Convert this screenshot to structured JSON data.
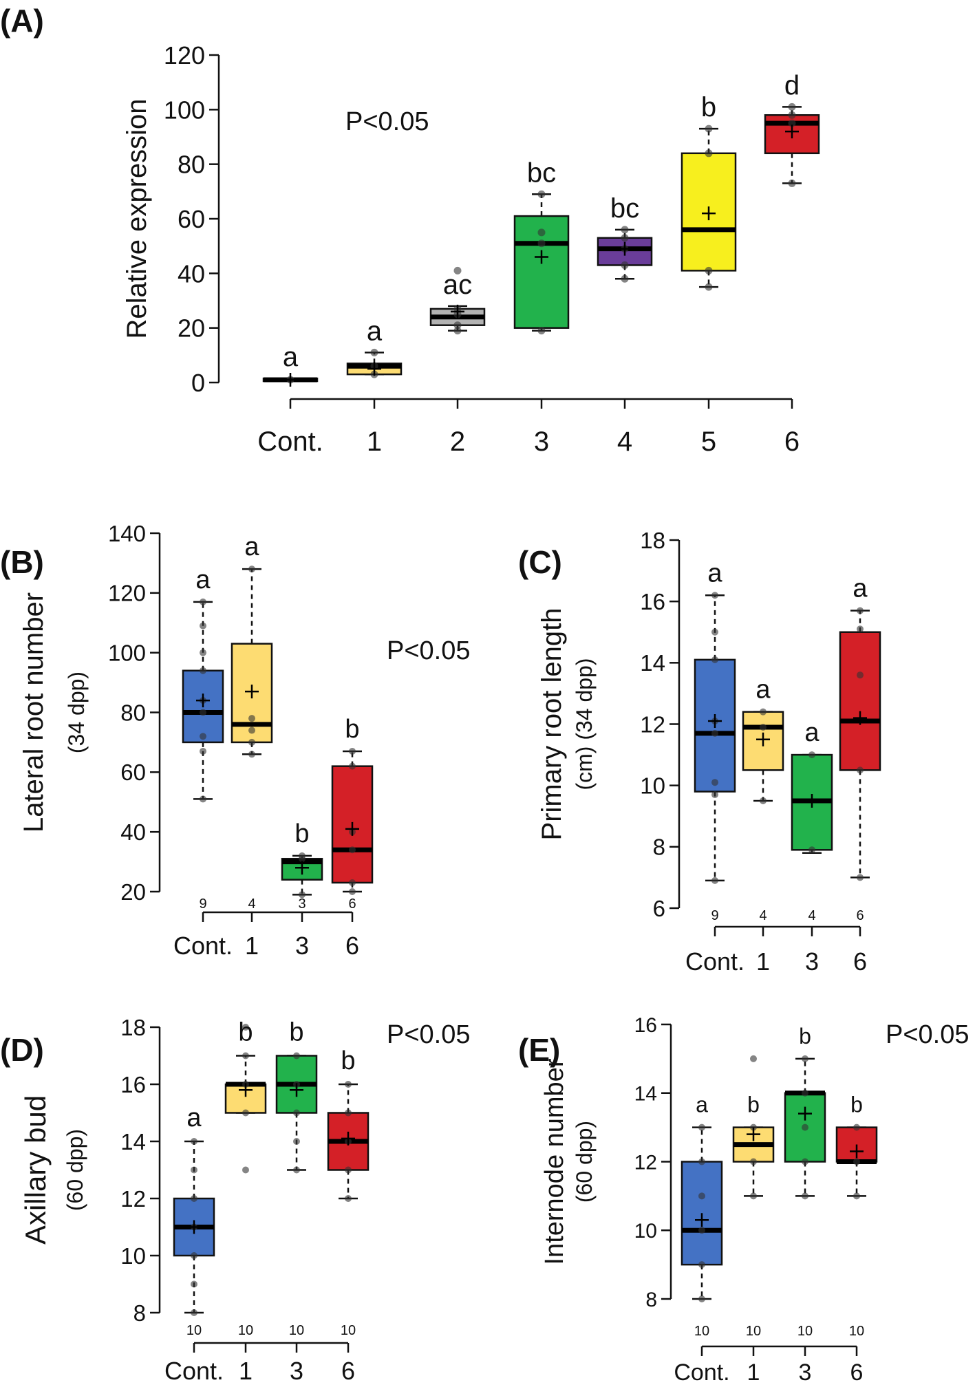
{
  "chart_data": [
    {
      "panel": "(A)",
      "type": "box",
      "ylabel": "Relative expression",
      "ylabel_sub": "",
      "ylim": [
        0,
        120
      ],
      "yticks": [
        0,
        20,
        40,
        60,
        80,
        100,
        120
      ],
      "categories": [
        "Cont.",
        "1",
        "2",
        "3",
        "4",
        "5",
        "6"
      ],
      "pvalue": "P<0.05",
      "n_labels": [],
      "boxes": [
        {
          "cat": "Cont.",
          "color": "#1a1a1a",
          "wmin": 0.5,
          "q1": 0.5,
          "median": 1,
          "q3": 1.5,
          "wmax": 1.5,
          "mean": 1,
          "points": [
            1
          ],
          "letter": "a"
        },
        {
          "cat": "1",
          "color": "#fddc72",
          "wmin": 3,
          "q1": 3,
          "median": 6,
          "q3": 7,
          "wmax": 11,
          "mean": 5,
          "points": [
            3,
            6,
            11
          ],
          "letter": "a"
        },
        {
          "cat": "2",
          "color": "#b3b3b3",
          "wmin": 19,
          "q1": 21,
          "median": 24,
          "q3": 27,
          "wmax": 28,
          "mean": 26,
          "points": [
            19,
            21,
            25,
            27,
            41
          ],
          "letter": "ac"
        },
        {
          "cat": "3",
          "color": "#22b24c",
          "wmin": 19,
          "q1": 20,
          "median": 51,
          "q3": 61,
          "wmax": 69,
          "mean": 46,
          "points": [
            19,
            51,
            55,
            69
          ],
          "letter": "bc"
        },
        {
          "cat": "4",
          "color": "#6a3d9a",
          "wmin": 38,
          "q1": 43,
          "median": 49,
          "q3": 53,
          "wmax": 56,
          "mean": 49,
          "points": [
            38,
            43,
            49,
            53,
            56
          ],
          "letter": "bc"
        },
        {
          "cat": "5",
          "color": "#f7ef1e",
          "wmin": 35,
          "q1": 41,
          "median": 56,
          "q3": 84,
          "wmax": 93,
          "mean": 62,
          "points": [
            35,
            41,
            84,
            93
          ],
          "letter": "b"
        },
        {
          "cat": "6",
          "color": "#d42027",
          "wmin": 73,
          "q1": 84,
          "median": 95,
          "q3": 98,
          "wmax": 101,
          "mean": 92,
          "points": [
            73,
            95,
            98,
            101
          ],
          "letter": "d"
        }
      ]
    },
    {
      "panel": "(B)",
      "type": "box",
      "ylabel": "Lateral root number",
      "ylabel_sub": "(34 dpp)",
      "ylim": [
        20,
        140
      ],
      "yticks": [
        20,
        40,
        60,
        80,
        100,
        120,
        140
      ],
      "categories": [
        "Cont.",
        "1",
        "3",
        "6"
      ],
      "pvalue": "P<0.05",
      "n_labels": [
        "9",
        "4",
        "3",
        "6"
      ],
      "boxes": [
        {
          "cat": "Cont.",
          "color": "#4472c4",
          "wmin": 51,
          "q1": 70,
          "median": 80,
          "q3": 94,
          "wmax": 117,
          "mean": 84,
          "points": [
            51,
            67,
            72,
            80,
            84,
            94,
            100,
            109,
            117
          ],
          "letter": "a"
        },
        {
          "cat": "1",
          "color": "#fddc72",
          "wmin": 66,
          "q1": 70,
          "median": 76,
          "q3": 103,
          "wmax": 128,
          "mean": 87,
          "points": [
            66,
            70,
            74,
            78,
            128
          ],
          "letter": "a"
        },
        {
          "cat": "3",
          "color": "#22b24c",
          "wmin": 19,
          "q1": 24,
          "median": 30,
          "q3": 31,
          "wmax": 32,
          "mean": 28,
          "points": [
            19,
            31,
            32
          ],
          "letter": "b"
        },
        {
          "cat": "6",
          "color": "#d42027",
          "wmin": 20,
          "q1": 23,
          "median": 34,
          "q3": 62,
          "wmax": 67,
          "mean": 41,
          "points": [
            20,
            23,
            34,
            40,
            62,
            67
          ],
          "letter": "b"
        }
      ]
    },
    {
      "panel": "(C)",
      "type": "box",
      "ylabel": "Primary root length",
      "ylabel_sub": "(cm) (34 dpp)",
      "ylim": [
        6,
        18
      ],
      "yticks": [
        6,
        8,
        10,
        12,
        14,
        16,
        18
      ],
      "categories": [
        "Cont.",
        "1",
        "3",
        "6"
      ],
      "pvalue": "",
      "n_labels": [
        "9",
        "4",
        "4",
        "6"
      ],
      "boxes": [
        {
          "cat": "Cont.",
          "color": "#4472c4",
          "wmin": 6.9,
          "q1": 9.8,
          "median": 11.7,
          "q3": 14.1,
          "wmax": 16.2,
          "mean": 12.1,
          "points": [
            6.9,
            9.7,
            10.1,
            11.7,
            12.1,
            14.1,
            15.0,
            16.2
          ],
          "letter": "a"
        },
        {
          "cat": "1",
          "color": "#fddc72",
          "wmin": 9.5,
          "q1": 10.5,
          "median": 11.9,
          "q3": 12.4,
          "wmax": 12.4,
          "mean": 11.5,
          "points": [
            9.5,
            11.9,
            12.4
          ],
          "letter": "a"
        },
        {
          "cat": "3",
          "color": "#22b24c",
          "wmin": 7.8,
          "q1": 7.9,
          "median": 9.5,
          "q3": 11.0,
          "wmax": 11.0,
          "mean": 9.5,
          "points": [
            7.9,
            11.0
          ],
          "letter": "a"
        },
        {
          "cat": "6",
          "color": "#d42027",
          "wmin": 7.0,
          "q1": 10.5,
          "median": 12.1,
          "q3": 15.0,
          "wmax": 15.7,
          "mean": 12.2,
          "points": [
            7.0,
            10.5,
            13.6,
            15.1,
            15.7
          ],
          "letter": "a"
        }
      ]
    },
    {
      "panel": "(D)",
      "type": "box",
      "ylabel": "Axillary bud",
      "ylabel_sub": "(60 dpp)",
      "ylim": [
        8,
        18
      ],
      "yticks": [
        8,
        10,
        12,
        14,
        16,
        18
      ],
      "categories": [
        "Cont.",
        "1",
        "3",
        "6"
      ],
      "pvalue": "P<0.05",
      "n_labels": [
        "10",
        "10",
        "10",
        "10"
      ],
      "boxes": [
        {
          "cat": "Cont.",
          "color": "#4472c4",
          "wmin": 8,
          "q1": 10,
          "median": 11,
          "q3": 12,
          "wmax": 14,
          "mean": 11,
          "points": [
            8,
            9,
            10,
            11,
            12,
            13,
            14
          ],
          "letter": "a"
        },
        {
          "cat": "1",
          "color": "#fddc72",
          "wmin": 15,
          "q1": 15,
          "median": 16,
          "q3": 16,
          "wmax": 17,
          "mean": 15.8,
          "points": [
            13,
            15,
            16,
            17,
            18
          ],
          "letter": "b"
        },
        {
          "cat": "3",
          "color": "#22b24c",
          "wmin": 13,
          "q1": 15,
          "median": 16,
          "q3": 17,
          "wmax": 17,
          "mean": 15.8,
          "points": [
            13,
            14,
            15,
            16,
            17
          ],
          "letter": "b"
        },
        {
          "cat": "6",
          "color": "#d42027",
          "wmin": 12,
          "q1": 13,
          "median": 14,
          "q3": 15,
          "wmax": 16,
          "mean": 14.1,
          "points": [
            12,
            13,
            14,
            15,
            16
          ],
          "letter": "b"
        }
      ]
    },
    {
      "panel": "(E)",
      "type": "box",
      "ylabel": "Internode number",
      "ylabel_sub": "(60 dpp)",
      "ylim": [
        8,
        16
      ],
      "yticks": [
        8,
        10,
        12,
        14,
        16
      ],
      "categories": [
        "Cont.",
        "1",
        "3",
        "6"
      ],
      "pvalue": "P<0.05",
      "n_labels": [
        "10",
        "10",
        "10",
        "10"
      ],
      "boxes": [
        {
          "cat": "Cont.",
          "color": "#4472c4",
          "wmin": 8,
          "q1": 9,
          "median": 10,
          "q3": 12,
          "wmax": 13,
          "mean": 10.3,
          "points": [
            8,
            9,
            10,
            11,
            12,
            13
          ],
          "letter": "a"
        },
        {
          "cat": "1",
          "color": "#fddc72",
          "wmin": 11,
          "q1": 12,
          "median": 12.5,
          "q3": 13,
          "wmax": 13,
          "mean": 12.8,
          "points": [
            11,
            12,
            13,
            15
          ],
          "letter": "b"
        },
        {
          "cat": "3",
          "color": "#22b24c",
          "wmin": 11,
          "q1": 12,
          "median": 14,
          "q3": 14,
          "wmax": 15,
          "mean": 13.4,
          "points": [
            11,
            12,
            13,
            14,
            15
          ],
          "letter": "b"
        },
        {
          "cat": "6",
          "color": "#d42027",
          "wmin": 11,
          "q1": 12,
          "median": 12,
          "q3": 13,
          "wmax": 13,
          "mean": 12.3,
          "points": [
            11,
            12,
            13
          ],
          "letter": "b"
        }
      ]
    }
  ]
}
